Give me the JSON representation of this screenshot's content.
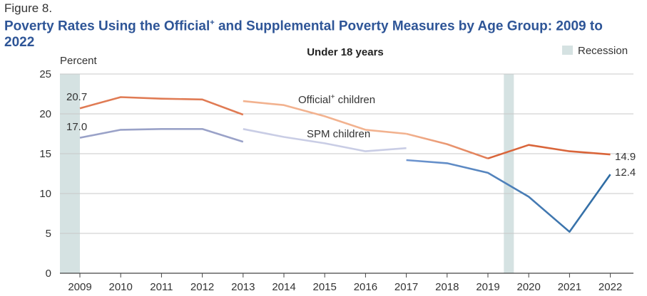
{
  "figure_label": "Figure 8.",
  "title_part1": "Poverty Rates Using the Official",
  "title_sup": "+",
  "title_part2": " and Supplemental Poverty Measures by Age Group: 2009 to 2022",
  "chart_data": {
    "type": "line",
    "subtitle": "Under 18 years",
    "ylabel": "Percent",
    "ylim": [
      0,
      25
    ],
    "yticks": [
      0,
      5,
      10,
      15,
      20,
      25
    ],
    "x": [
      2009,
      2010,
      2011,
      2012,
      2013,
      2014,
      2015,
      2016,
      2017,
      2018,
      2019,
      2020,
      2021,
      2022
    ],
    "grid": true,
    "legend": {
      "label": "Recession",
      "position": "top-right",
      "color": "#d5e2e2"
    },
    "recessions": [
      [
        2009.0,
        2009.45
      ],
      [
        2019.6,
        2019.85
      ]
    ],
    "series": [
      {
        "key": "off1",
        "measure": "official",
        "color": "#e07b54",
        "x": [
          2009,
          2010,
          2011,
          2012,
          2013
        ],
        "values": [
          20.7,
          22.1,
          21.9,
          21.8,
          19.9
        ]
      },
      {
        "key": "off2",
        "measure": "official",
        "color": "#f2b28f",
        "x": [
          2013,
          2014,
          2015,
          2016,
          2017
        ],
        "values": [
          21.6,
          21.1,
          19.7,
          18.0,
          17.5
        ]
      },
      {
        "key": "off3",
        "measure": "official",
        "color": "",
        "gradient": [
          "#f2b28f",
          "#e07b54"
        ],
        "x": [
          2017,
          2018,
          2019
        ],
        "values": [
          17.5,
          16.2,
          14.4
        ]
      },
      {
        "key": "off4",
        "measure": "official",
        "color": "#d9653a",
        "x": [
          2019,
          2020,
          2021,
          2022
        ],
        "values": [
          14.4,
          16.1,
          15.3,
          14.9
        ]
      },
      {
        "key": "spm1",
        "measure": "spm",
        "color": "#9aa2c8",
        "x": [
          2009,
          2010,
          2011,
          2012,
          2013
        ],
        "values": [
          17.0,
          18.0,
          18.1,
          18.1,
          16.5
        ]
      },
      {
        "key": "spm2",
        "measure": "spm",
        "color": "#c9cde5",
        "x": [
          2013,
          2014,
          2015,
          2016,
          2017
        ],
        "values": [
          18.1,
          17.1,
          16.3,
          15.3,
          15.7
        ]
      },
      {
        "key": "spm3",
        "measure": "spm",
        "color": "",
        "gradient": [
          "#6e95d0",
          "#2d6ba2"
        ],
        "x": [
          2017,
          2018,
          2019,
          2020,
          2021,
          2022
        ],
        "values": [
          14.2,
          13.8,
          12.6,
          9.6,
          5.2,
          12.4
        ]
      }
    ],
    "annotations": {
      "official_label": "Official",
      "official_sup": "+",
      "official_label_end": " children",
      "spm_label": "SPM children",
      "official_2009": "20.7",
      "spm_2009": "17.0",
      "official_2022": "14.9",
      "spm_2022": "12.4"
    }
  }
}
